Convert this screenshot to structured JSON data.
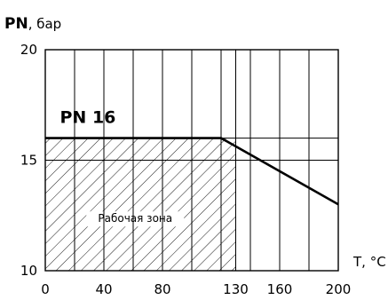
{
  "chart_data": {
    "type": "line",
    "y_title": {
      "main": "PN",
      "unit": ", бар"
    },
    "x_title": "T, °C",
    "xlim": [
      0,
      200
    ],
    "ylim": [
      10,
      20
    ],
    "x_ticks": [
      0,
      40,
      80,
      130,
      160,
      200
    ],
    "x_tick_labels": [
      "0",
      "40",
      "80",
      "130",
      "160",
      "200"
    ],
    "y_ticks": [
      10,
      15,
      20
    ],
    "y_tick_labels": [
      "10",
      "15",
      "20"
    ],
    "x_grid": [
      0,
      20,
      40,
      60,
      80,
      100,
      120,
      130,
      140,
      160,
      180,
      200
    ],
    "y_grid": [
      10,
      15,
      16,
      20
    ],
    "grid": true,
    "series": [
      {
        "name": "PN 16",
        "x": [
          0,
          120,
          200
        ],
        "y": [
          16,
          16,
          13
        ]
      }
    ],
    "working_zone": {
      "label": "Рабочая зона",
      "x": [
        0,
        130
      ],
      "y": [
        10,
        16
      ]
    },
    "line_color": "#000000"
  }
}
